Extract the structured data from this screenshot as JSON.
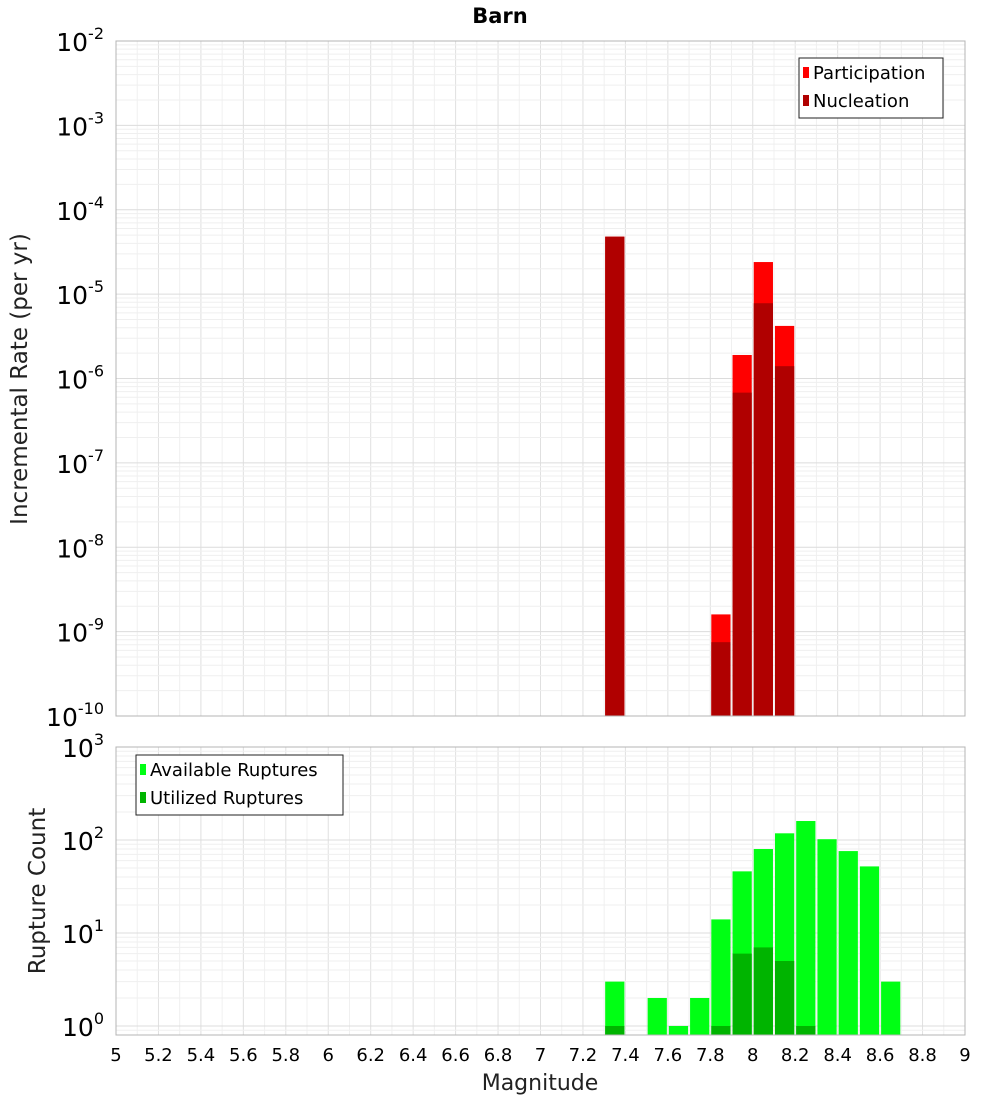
{
  "chart_data": [
    {
      "type": "bar",
      "title": "Barn",
      "xlabel": "Magnitude",
      "ylabel": "Incremental Rate (per yr)",
      "yscale": "log",
      "xlim": [
        5,
        9
      ],
      "ylim": [
        1e-10,
        0.01
      ],
      "grid": true,
      "legend_position": "top-right",
      "x_ticks": [
        "5",
        "5.2",
        "5.4",
        "5.6",
        "5.8",
        "6",
        "6.2",
        "6.4",
        "6.6",
        "6.8",
        "7",
        "7.2",
        "7.4",
        "7.6",
        "7.8",
        "8",
        "8.2",
        "8.4",
        "8.6",
        "8.8",
        "9"
      ],
      "y_ticks": [
        {
          "base": "10",
          "exp": "-2"
        },
        {
          "base": "10",
          "exp": "-3"
        },
        {
          "base": "10",
          "exp": "-4"
        },
        {
          "base": "10",
          "exp": "-5"
        },
        {
          "base": "10",
          "exp": "-6"
        },
        {
          "base": "10",
          "exp": "-7"
        },
        {
          "base": "10",
          "exp": "-8"
        },
        {
          "base": "10",
          "exp": "-9"
        },
        {
          "base": "10",
          "exp": "-10"
        }
      ],
      "series": [
        {
          "name": "Participation",
          "color": "#ff0000",
          "points": [
            {
              "x": 7.35,
              "y": 4.8e-05
            },
            {
              "x": 7.85,
              "y": 1.6e-09
            },
            {
              "x": 7.95,
              "y": 1.9e-06
            },
            {
              "x": 8.05,
              "y": 2.4e-05
            },
            {
              "x": 8.15,
              "y": 4.2e-06
            }
          ]
        },
        {
          "name": "Nucleation",
          "color": "#b00000",
          "points": [
            {
              "x": 7.35,
              "y": 4.8e-05
            },
            {
              "x": 7.85,
              "y": 7.5e-10
            },
            {
              "x": 7.95,
              "y": 6.8e-07
            },
            {
              "x": 8.05,
              "y": 7.8e-06
            },
            {
              "x": 8.15,
              "y": 1.4e-06
            }
          ]
        }
      ]
    },
    {
      "type": "bar",
      "title": "",
      "xlabel": "Magnitude",
      "ylabel": "Rupture Count",
      "yscale": "log",
      "xlim": [
        5,
        9
      ],
      "ylim": [
        0.8,
        1000
      ],
      "grid": true,
      "legend_position": "top-left",
      "y_ticks": [
        {
          "base": "10",
          "exp": "3"
        },
        {
          "base": "10",
          "exp": "2"
        },
        {
          "base": "10",
          "exp": "1"
        },
        {
          "base": "10",
          "exp": "0"
        }
      ],
      "series": [
        {
          "name": "Available Ruptures",
          "color": "#00ff14",
          "points": [
            {
              "x": 7.35,
              "y": 3
            },
            {
              "x": 7.55,
              "y": 2
            },
            {
              "x": 7.65,
              "y": 1
            },
            {
              "x": 7.75,
              "y": 2
            },
            {
              "x": 7.85,
              "y": 14
            },
            {
              "x": 7.95,
              "y": 46
            },
            {
              "x": 8.05,
              "y": 80
            },
            {
              "x": 8.15,
              "y": 118
            },
            {
              "x": 8.25,
              "y": 160
            },
            {
              "x": 8.35,
              "y": 102
            },
            {
              "x": 8.45,
              "y": 76
            },
            {
              "x": 8.55,
              "y": 52
            },
            {
              "x": 8.65,
              "y": 3
            }
          ]
        },
        {
          "name": "Utilized Ruptures",
          "color": "#00b400",
          "points": [
            {
              "x": 7.35,
              "y": 1
            },
            {
              "x": 7.85,
              "y": 1
            },
            {
              "x": 7.95,
              "y": 6
            },
            {
              "x": 8.05,
              "y": 7
            },
            {
              "x": 8.15,
              "y": 5
            },
            {
              "x": 8.25,
              "y": 1
            }
          ]
        }
      ]
    }
  ]
}
